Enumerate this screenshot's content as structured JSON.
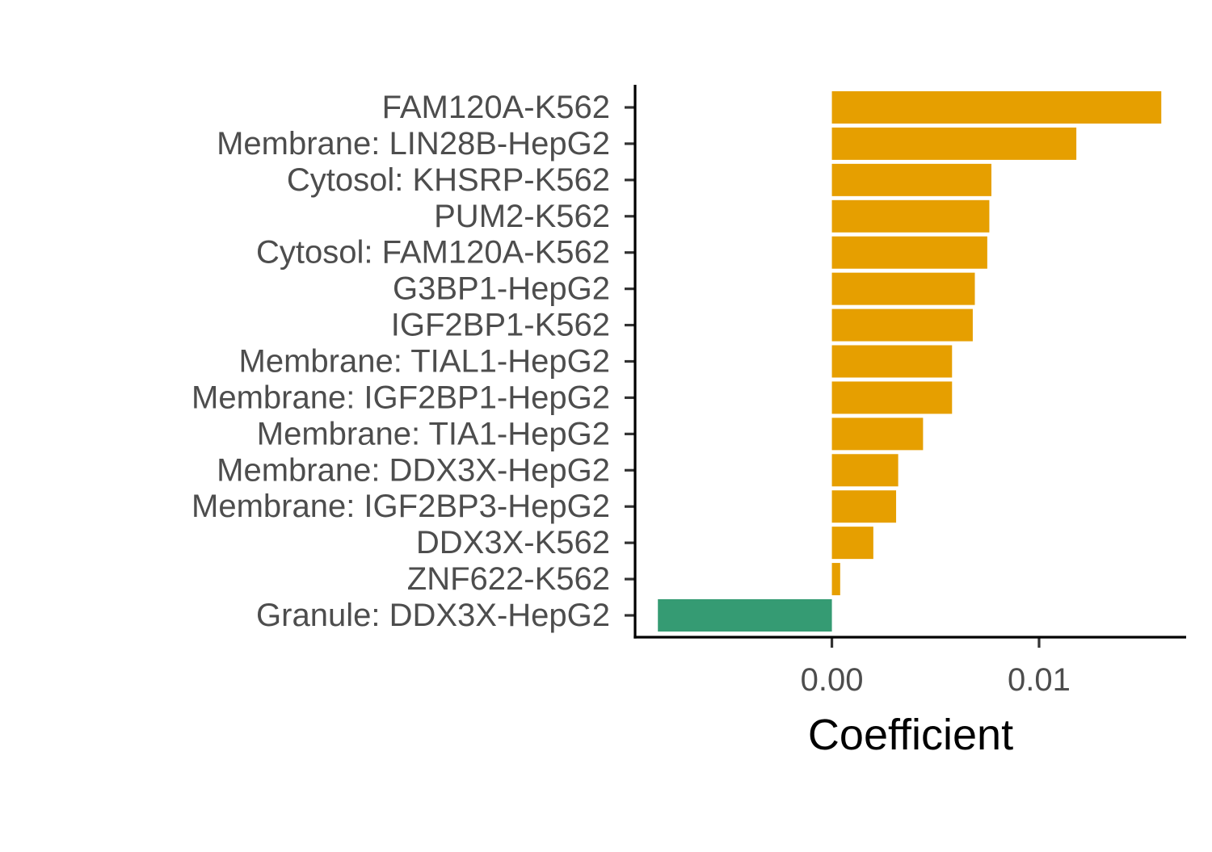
{
  "chart_data": {
    "type": "bar",
    "orientation": "horizontal",
    "title": "",
    "xlabel": "Coefficient",
    "ylabel": "",
    "xlim": [
      -0.0095,
      0.0171
    ],
    "x_ticks": [
      {
        "value": 0.0,
        "label": "0.00"
      },
      {
        "value": 0.01,
        "label": "0.01"
      }
    ],
    "grid": false,
    "legend": "none",
    "colors": {
      "positive": "#E69F00",
      "negative": "#359B73",
      "axis": "#000000",
      "tick_text": "#4D4D4D"
    },
    "categories": [
      "FAM120A-K562",
      "Membrane: LIN28B-HepG2",
      "Cytosol: KHSRP-K562",
      "PUM2-K562",
      "Cytosol: FAM120A-K562",
      "G3BP1-HepG2",
      "IGF2BP1-K562",
      "Membrane: TIAL1-HepG2",
      "Membrane: IGF2BP1-HepG2",
      "Membrane: TIA1-HepG2",
      "Membrane: DDX3X-HepG2",
      "Membrane: IGF2BP3-HepG2",
      "DDX3X-K562",
      "ZNF622-K562",
      "Granule: DDX3X-HepG2"
    ],
    "values": [
      0.0159,
      0.0118,
      0.0077,
      0.0076,
      0.0075,
      0.0069,
      0.0068,
      0.0058,
      0.0058,
      0.0044,
      0.0032,
      0.0031,
      0.002,
      0.0004,
      -0.0084
    ]
  }
}
